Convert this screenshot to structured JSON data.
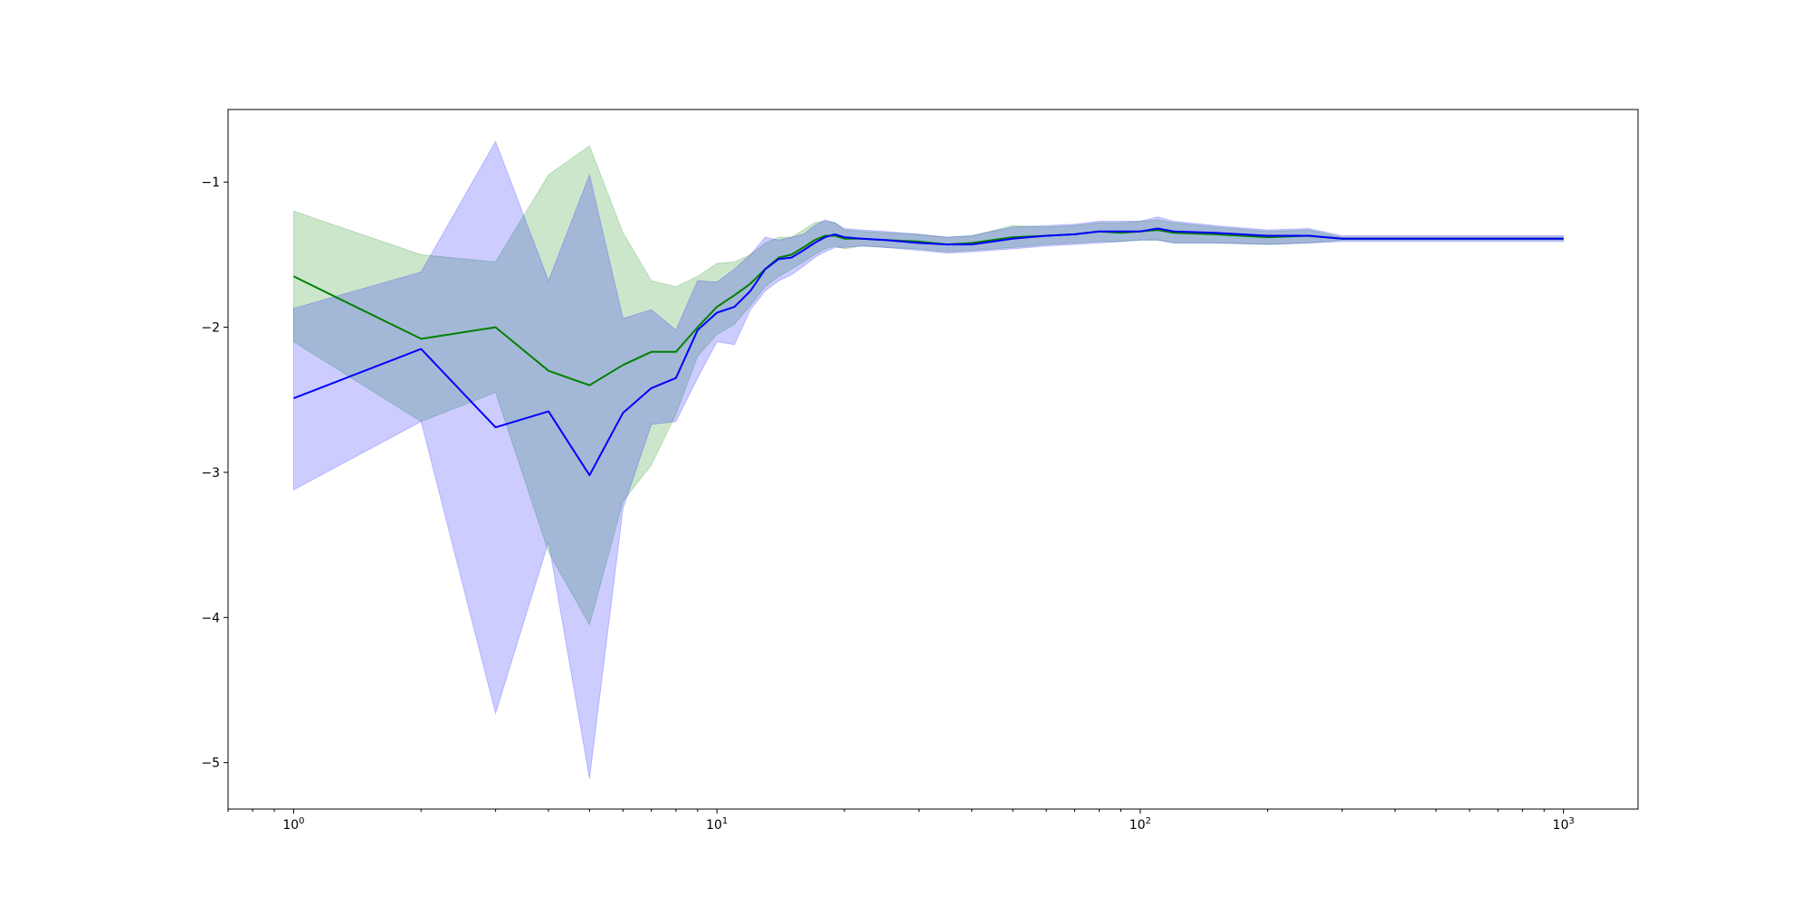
{
  "chart_data": {
    "type": "line",
    "title": "",
    "xlabel": "",
    "ylabel": "",
    "x_scale": "log",
    "xlim": [
      0.7,
      1500
    ],
    "ylim": [
      -5.32,
      -0.5
    ],
    "grid": false,
    "x_ticks": [
      {
        "value": 1,
        "base": "10",
        "exp": "0"
      },
      {
        "value": 10,
        "base": "10",
        "exp": "1"
      },
      {
        "value": 100,
        "base": "10",
        "exp": "2"
      },
      {
        "value": 1000,
        "base": "10",
        "exp": "3"
      }
    ],
    "y_ticks": [
      {
        "value": -1,
        "label": "−1"
      },
      {
        "value": -2,
        "label": "−2"
      },
      {
        "value": -3,
        "label": "−3"
      },
      {
        "value": -4,
        "label": "−4"
      },
      {
        "value": -5,
        "label": "−5"
      }
    ],
    "series": [
      {
        "color": "#008000",
        "band_color": "#008000",
        "x": [
          1,
          2,
          3,
          4,
          5,
          6,
          7,
          8,
          9,
          10,
          11,
          12,
          13,
          14,
          15,
          16,
          17,
          18,
          19,
          20,
          22,
          25,
          30,
          35,
          40,
          50,
          60,
          70,
          80,
          90,
          100,
          110,
          120,
          150,
          200,
          250,
          300,
          400,
          500,
          600,
          800,
          1000
        ],
        "y": [
          -1.65,
          -2.08,
          -2.0,
          -2.3,
          -2.4,
          -2.26,
          -2.17,
          -2.17,
          -2.0,
          -1.86,
          -1.78,
          -1.7,
          -1.6,
          -1.52,
          -1.5,
          -1.45,
          -1.4,
          -1.37,
          -1.37,
          -1.39,
          -1.39,
          -1.4,
          -1.41,
          -1.43,
          -1.42,
          -1.38,
          -1.37,
          -1.36,
          -1.34,
          -1.35,
          -1.34,
          -1.33,
          -1.35,
          -1.36,
          -1.38,
          -1.37,
          -1.39,
          -1.39,
          -1.39,
          -1.39,
          -1.39,
          -1.39
        ],
        "lower": [
          -2.1,
          -2.65,
          -2.45,
          -3.55,
          -4.05,
          -3.2,
          -2.95,
          -2.6,
          -2.2,
          -2.05,
          -1.98,
          -1.85,
          -1.72,
          -1.65,
          -1.6,
          -1.55,
          -1.5,
          -1.46,
          -1.44,
          -1.46,
          -1.44,
          -1.45,
          -1.46,
          -1.48,
          -1.47,
          -1.45,
          -1.43,
          -1.42,
          -1.41,
          -1.41,
          -1.4,
          -1.4,
          -1.42,
          -1.42,
          -1.43,
          -1.42,
          -1.4,
          -1.4,
          -1.4,
          -1.4,
          -1.4,
          -1.4
        ],
        "upper": [
          -1.2,
          -1.5,
          -1.55,
          -0.95,
          -0.75,
          -1.35,
          -1.68,
          -1.72,
          -1.65,
          -1.56,
          -1.55,
          -1.5,
          -1.42,
          -1.38,
          -1.38,
          -1.33,
          -1.28,
          -1.27,
          -1.28,
          -1.33,
          -1.34,
          -1.35,
          -1.36,
          -1.38,
          -1.37,
          -1.3,
          -1.31,
          -1.3,
          -1.28,
          -1.28,
          -1.27,
          -1.26,
          -1.28,
          -1.31,
          -1.34,
          -1.33,
          -1.38,
          -1.38,
          -1.38,
          -1.38,
          -1.38,
          -1.38
        ]
      },
      {
        "color": "#0000ff",
        "band_color": "#0000ff",
        "x": [
          1,
          2,
          3,
          4,
          5,
          6,
          7,
          8,
          9,
          10,
          11,
          12,
          13,
          14,
          15,
          16,
          17,
          18,
          19,
          20,
          22,
          25,
          30,
          35,
          40,
          50,
          60,
          70,
          80,
          90,
          100,
          110,
          120,
          150,
          200,
          250,
          300,
          400,
          500,
          600,
          800,
          1000
        ],
        "y": [
          -2.49,
          -2.15,
          -2.69,
          -2.58,
          -3.02,
          -2.59,
          -2.42,
          -2.35,
          -2.02,
          -1.9,
          -1.86,
          -1.75,
          -1.6,
          -1.53,
          -1.52,
          -1.47,
          -1.42,
          -1.38,
          -1.36,
          -1.38,
          -1.39,
          -1.4,
          -1.42,
          -1.43,
          -1.43,
          -1.39,
          -1.37,
          -1.36,
          -1.34,
          -1.34,
          -1.34,
          -1.32,
          -1.34,
          -1.35,
          -1.37,
          -1.37,
          -1.39,
          -1.39,
          -1.39,
          -1.39,
          -1.39,
          -1.39
        ],
        "lower": [
          -3.12,
          -2.65,
          -4.66,
          -3.48,
          -5.11,
          -3.25,
          -2.67,
          -2.65,
          -2.35,
          -2.1,
          -2.12,
          -1.88,
          -1.75,
          -1.68,
          -1.64,
          -1.58,
          -1.52,
          -1.48,
          -1.45,
          -1.45,
          -1.44,
          -1.45,
          -1.47,
          -1.49,
          -1.48,
          -1.46,
          -1.44,
          -1.43,
          -1.42,
          -1.41,
          -1.4,
          -1.4,
          -1.42,
          -1.42,
          -1.43,
          -1.42,
          -1.41,
          -1.41,
          -1.41,
          -1.41,
          -1.41,
          -1.41
        ],
        "upper": [
          -1.87,
          -1.62,
          -0.72,
          -1.68,
          -0.95,
          -1.94,
          -1.88,
          -2.02,
          -1.68,
          -1.69,
          -1.6,
          -1.5,
          -1.38,
          -1.4,
          -1.38,
          -1.36,
          -1.3,
          -1.26,
          -1.28,
          -1.32,
          -1.33,
          -1.34,
          -1.36,
          -1.38,
          -1.37,
          -1.31,
          -1.3,
          -1.29,
          -1.27,
          -1.27,
          -1.27,
          -1.24,
          -1.27,
          -1.3,
          -1.33,
          -1.32,
          -1.37,
          -1.37,
          -1.37,
          -1.37,
          -1.37,
          -1.37
        ]
      }
    ]
  }
}
